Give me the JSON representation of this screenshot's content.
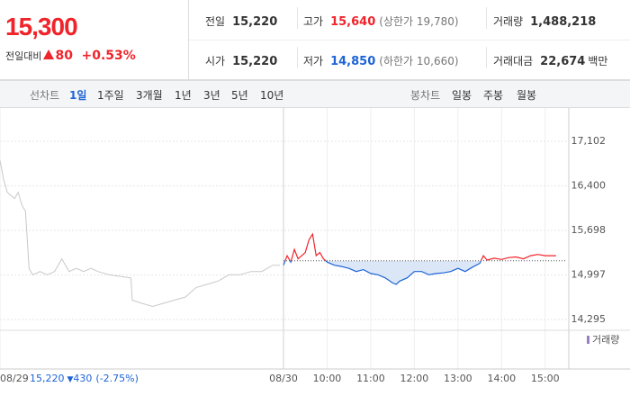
{
  "header": {
    "price": "15,300",
    "change_label": "전일대비",
    "change": "80",
    "change_rate": "+0.53%"
  },
  "stats": [
    [
      {
        "label": "전일",
        "value": "15,220"
      },
      {
        "label": "고가",
        "value": "15,640",
        "extra": "(상한가 19,780)"
      },
      {
        "label": "거래량",
        "value": "1,488,218"
      }
    ],
    [
      {
        "label": "시가",
        "value": "15,220"
      },
      {
        "label": "저가",
        "value": "14,850",
        "extra": "(하한가 10,660)"
      },
      {
        "label": "거래대금",
        "value": "22,674",
        "unit": "백만"
      }
    ]
  ],
  "tabs": {
    "left_title": "선차트",
    "left": [
      "1일",
      "1주일",
      "3개월",
      "1년",
      "3년",
      "5년",
      "10년"
    ],
    "selected": 0,
    "right_title": "봉차트",
    "right": [
      "일봉",
      "주봉",
      "월봉"
    ]
  },
  "chart_data": {
    "type": "line",
    "xlim": [
      0,
      780
    ],
    "xticks": [
      {
        "value": 0,
        "label": "08/29"
      },
      {
        "value": 390,
        "label": "08/30"
      },
      {
        "value": 450,
        "label": "10:00"
      },
      {
        "value": 510,
        "label": "11:00"
      },
      {
        "value": 570,
        "label": "12:00"
      },
      {
        "value": 630,
        "label": "13:00"
      },
      {
        "value": 690,
        "label": "14:00"
      },
      {
        "value": 750,
        "label": "15:00"
      }
    ],
    "ylim": [
      14295,
      17102
    ],
    "yticks": [
      {
        "value": 17102,
        "label": "17,102"
      },
      {
        "value": 16400,
        "label": "16,400"
      },
      {
        "value": 15698,
        "label": "15,698"
      },
      {
        "value": 14997,
        "label": "14,997"
      },
      {
        "value": 14295,
        "label": "14,295"
      }
    ],
    "prev_close": 15220,
    "prev_note": {
      "close": "15,220",
      "change": "430",
      "change_rate": "(-2.75%)"
    },
    "volume_label": "거래량",
    "series": [
      {
        "color": "#c8c8c8",
        "x": [
          0,
          5,
          10,
          15,
          20,
          25,
          30,
          35,
          40,
          45,
          55,
          65,
          75,
          85,
          95,
          105,
          115,
          125,
          135,
          150,
          180,
          182,
          195,
          210,
          225,
          240,
          255,
          270,
          285,
          300,
          315,
          330,
          345,
          360,
          375,
          385
        ],
        "values": [
          16800,
          16500,
          16300,
          16250,
          16200,
          16300,
          16100,
          16000,
          15100,
          15000,
          15050,
          15000,
          15050,
          15250,
          15050,
          15100,
          15050,
          15100,
          15050,
          15000,
          14950,
          14600,
          14550,
          14500,
          14550,
          14600,
          14650,
          14800,
          14850,
          14900,
          15000,
          15000,
          15050,
          15050,
          15150,
          15150
        ]
      },
      {
        "up_color": "#f0242b",
        "down_color": "#1d63d6",
        "fill_color": "#dbe7f6",
        "x": [
          390,
          395,
          400,
          405,
          410,
          420,
          425,
          430,
          435,
          440,
          445,
          450,
          460,
          470,
          480,
          490,
          500,
          510,
          520,
          530,
          540,
          545,
          550,
          560,
          570,
          580,
          590,
          600,
          610,
          620,
          630,
          640,
          650,
          660,
          665,
          670,
          680,
          690,
          700,
          710,
          720,
          730,
          740,
          750,
          765
        ],
        "values": [
          15150,
          15300,
          15200,
          15400,
          15250,
          15350,
          15550,
          15640,
          15300,
          15350,
          15250,
          15200,
          15150,
          15130,
          15100,
          15050,
          15080,
          15020,
          15000,
          14950,
          14870,
          14850,
          14900,
          14950,
          15050,
          15050,
          15000,
          15020,
          15030,
          15050,
          15100,
          15050,
          15120,
          15180,
          15300,
          15230,
          15260,
          15240,
          15270,
          15280,
          15250,
          15300,
          15320,
          15300,
          15300
        ]
      }
    ]
  }
}
